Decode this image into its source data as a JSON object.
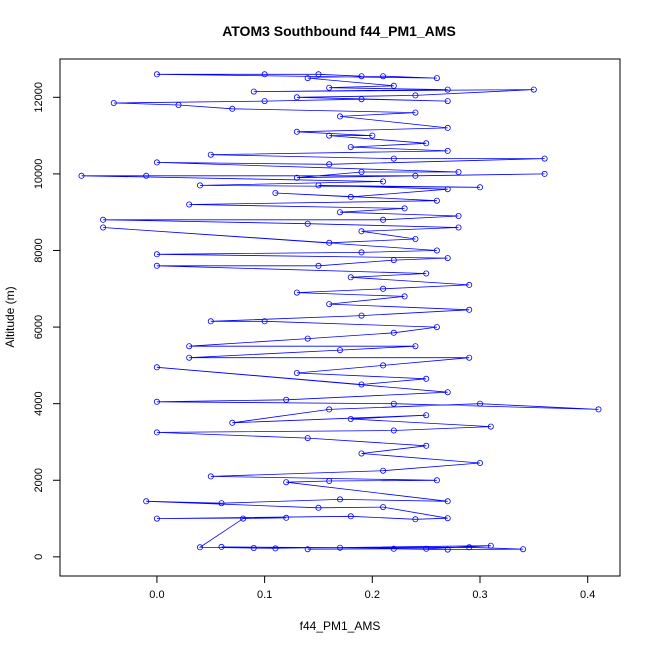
{
  "chart_data": {
    "type": "line",
    "title": "ATOM3 Southbound f44_PM1_AMS",
    "xlabel": "f44_PM1_AMS",
    "ylabel": "Altitude (m)",
    "xlim": [
      -0.09,
      0.43
    ],
    "ylim": [
      -500,
      13000
    ],
    "x_ticks": [
      0.0,
      0.1,
      0.2,
      0.3,
      0.4
    ],
    "x_tick_labels": [
      "0.0",
      "0.1",
      "0.2",
      "0.3",
      "0.4"
    ],
    "y_ticks": [
      0,
      2000,
      4000,
      6000,
      8000,
      10000,
      12000
    ],
    "y_tick_labels": [
      "0",
      "2000",
      "4000",
      "6000",
      "8000",
      "10000",
      "12000"
    ],
    "series": [
      {
        "name": "f44_PM1_AMS",
        "color": "#0000ff",
        "marker": "circle",
        "points": [
          [
            0.14,
            200
          ],
          [
            0.22,
            210
          ],
          [
            0.27,
            190
          ],
          [
            0.34,
            200
          ],
          [
            0.29,
            250
          ],
          [
            0.09,
            230
          ],
          [
            0.06,
            260
          ],
          [
            0.17,
            240
          ],
          [
            0.25,
            210
          ],
          [
            0.31,
            290
          ],
          [
            0.11,
            220
          ],
          [
            0.04,
            250
          ],
          [
            0.08,
            1000
          ],
          [
            0.12,
            1020
          ],
          [
            0.0,
            1000
          ],
          [
            0.18,
            1060
          ],
          [
            0.24,
            980
          ],
          [
            0.27,
            1010
          ],
          [
            0.21,
            1300
          ],
          [
            0.15,
            1280
          ],
          [
            -0.01,
            1450
          ],
          [
            0.06,
            1400
          ],
          [
            0.17,
            1500
          ],
          [
            0.27,
            1450
          ],
          [
            0.12,
            1950
          ],
          [
            0.16,
            1980
          ],
          [
            0.26,
            2000
          ],
          [
            0.05,
            2100
          ],
          [
            0.21,
            2250
          ],
          [
            0.3,
            2450
          ],
          [
            0.19,
            2700
          ],
          [
            0.25,
            2900
          ],
          [
            0.14,
            3100
          ],
          [
            0.0,
            3250
          ],
          [
            0.22,
            3300
          ],
          [
            0.31,
            3400
          ],
          [
            0.18,
            3600
          ],
          [
            0.25,
            3700
          ],
          [
            0.07,
            3500
          ],
          [
            0.16,
            3850
          ],
          [
            0.3,
            4000
          ],
          [
            0.41,
            3850
          ],
          [
            0.22,
            4000
          ],
          [
            0.0,
            4050
          ],
          [
            0.12,
            4100
          ],
          [
            0.27,
            4300
          ],
          [
            0.0,
            4950
          ],
          [
            0.19,
            4500
          ],
          [
            0.25,
            4650
          ],
          [
            0.13,
            4800
          ],
          [
            0.21,
            5000
          ],
          [
            0.29,
            5200
          ],
          [
            0.03,
            5200
          ],
          [
            0.17,
            5400
          ],
          [
            0.24,
            5500
          ],
          [
            0.03,
            5500
          ],
          [
            0.14,
            5700
          ],
          [
            0.22,
            5850
          ],
          [
            0.26,
            6000
          ],
          [
            0.1,
            6150
          ],
          [
            0.05,
            6150
          ],
          [
            0.19,
            6300
          ],
          [
            0.29,
            6450
          ],
          [
            0.16,
            6600
          ],
          [
            0.23,
            6800
          ],
          [
            0.13,
            6900
          ],
          [
            0.21,
            7000
          ],
          [
            0.29,
            7100
          ],
          [
            0.18,
            7300
          ],
          [
            0.25,
            7400
          ],
          [
            0.0,
            7600
          ],
          [
            0.15,
            7600
          ],
          [
            0.22,
            7750
          ],
          [
            0.27,
            7800
          ],
          [
            0.0,
            7900
          ],
          [
            0.19,
            7950
          ],
          [
            0.26,
            8000
          ],
          [
            -0.05,
            8600
          ],
          [
            0.16,
            8200
          ],
          [
            0.24,
            8300
          ],
          [
            0.19,
            8500
          ],
          [
            0.28,
            8600
          ],
          [
            0.14,
            8700
          ],
          [
            -0.05,
            8800
          ],
          [
            0.21,
            8800
          ],
          [
            0.28,
            8900
          ],
          [
            0.17,
            9000
          ],
          [
            0.23,
            9100
          ],
          [
            0.03,
            9200
          ],
          [
            0.26,
            9300
          ],
          [
            0.11,
            9500
          ],
          [
            0.18,
            9400
          ],
          [
            0.27,
            9600
          ],
          [
            0.15,
            9700
          ],
          [
            0.3,
            9650
          ],
          [
            0.04,
            9700
          ],
          [
            0.21,
            9800
          ],
          [
            -0.07,
            9950
          ],
          [
            -0.01,
            9950
          ],
          [
            0.24,
            9950
          ],
          [
            0.36,
            10000
          ],
          [
            0.13,
            9900
          ],
          [
            0.19,
            10050
          ],
          [
            0.28,
            10050
          ],
          [
            0.0,
            10300
          ],
          [
            0.16,
            10250
          ],
          [
            0.36,
            10400
          ],
          [
            0.22,
            10400
          ],
          [
            0.05,
            10500
          ],
          [
            0.27,
            10600
          ],
          [
            0.18,
            10700
          ],
          [
            0.25,
            10800
          ],
          [
            0.16,
            11000
          ],
          [
            0.2,
            11000
          ],
          [
            0.13,
            11100
          ],
          [
            0.27,
            11200
          ],
          [
            0.17,
            11500
          ],
          [
            0.24,
            11600
          ],
          [
            0.07,
            11700
          ],
          [
            0.02,
            11800
          ],
          [
            -0.04,
            11850
          ],
          [
            0.1,
            11900
          ],
          [
            0.19,
            11950
          ],
          [
            0.27,
            11900
          ],
          [
            0.13,
            12000
          ],
          [
            0.24,
            12050
          ],
          [
            0.35,
            12200
          ],
          [
            0.09,
            12150
          ],
          [
            0.27,
            12200
          ],
          [
            0.16,
            12250
          ],
          [
            0.22,
            12300
          ],
          [
            0.14,
            12500
          ],
          [
            0.21,
            12550
          ],
          [
            0.26,
            12500
          ],
          [
            0.0,
            12600
          ],
          [
            0.1,
            12600
          ],
          [
            0.15,
            12600
          ],
          [
            0.19,
            12550
          ]
        ]
      }
    ]
  }
}
